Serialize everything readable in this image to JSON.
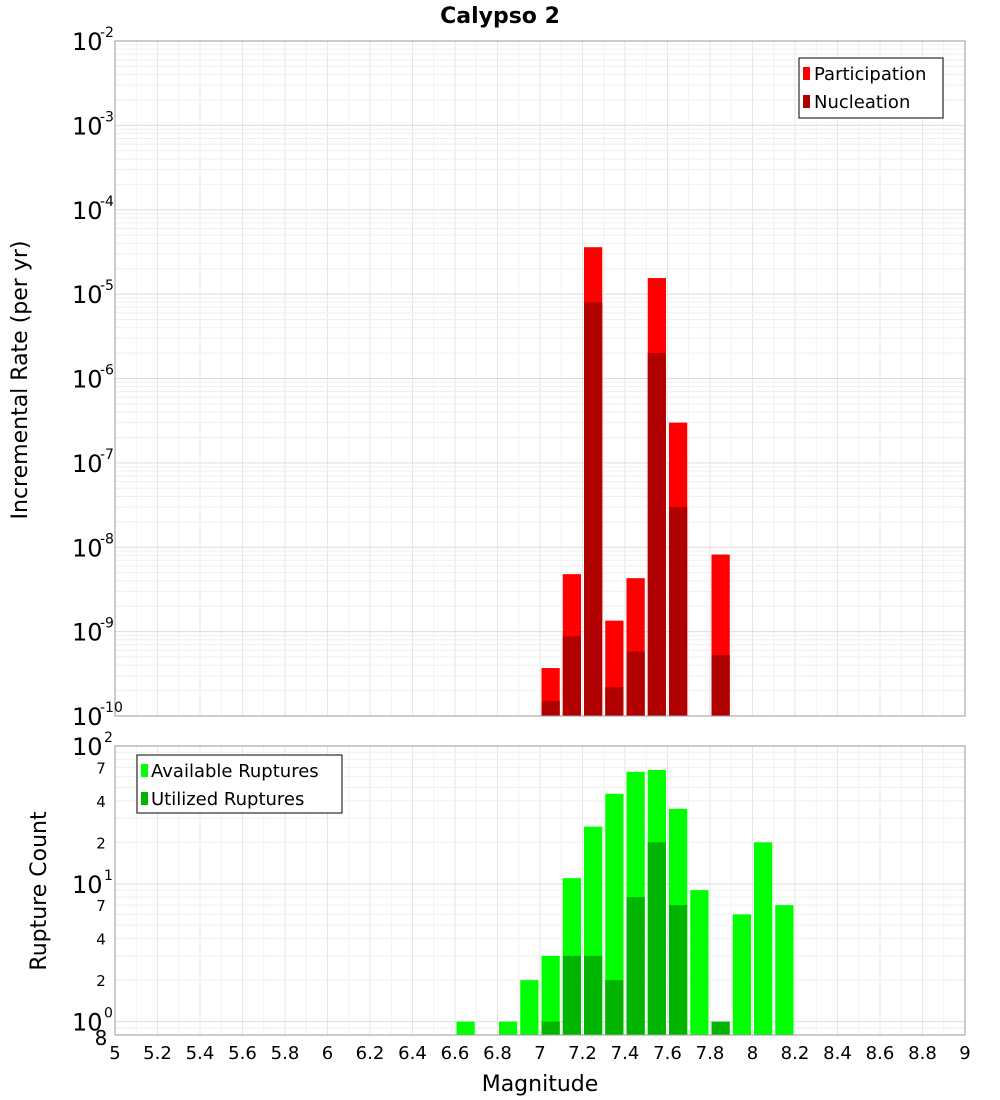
{
  "chart_data": [
    {
      "type": "bar",
      "title": "Calypso 2",
      "ylabel": "Incremental Rate (per yr)",
      "xlabel": "",
      "yscale": "log",
      "ylim": [
        1e-10,
        0.01
      ],
      "xlim": [
        5,
        9
      ],
      "grid": true,
      "legend_position": "top-right",
      "y_ticks": [
        {
          "base": "10",
          "exp": "-2"
        },
        {
          "base": "10",
          "exp": "-3"
        },
        {
          "base": "10",
          "exp": "-4"
        },
        {
          "base": "10",
          "exp": "-5"
        },
        {
          "base": "10",
          "exp": "-6"
        },
        {
          "base": "10",
          "exp": "-7"
        },
        {
          "base": "10",
          "exp": "-8"
        },
        {
          "base": "10",
          "exp": "-9"
        },
        {
          "base": "10",
          "exp": "-10"
        }
      ],
      "x_centers": [
        7.05,
        7.15,
        7.25,
        7.35,
        7.45,
        7.55,
        7.65,
        7.75,
        7.85
      ],
      "series": [
        {
          "name": "Participation",
          "color": "#ff0000",
          "values": [
            3.7e-10,
            4.8e-09,
            3.6e-05,
            1.35e-09,
            4.3e-09,
            1.55e-05,
            3e-07,
            null,
            8.2e-09
          ]
        },
        {
          "name": "Nucleation",
          "color": "#b00000",
          "values": [
            1.5e-10,
            8.8e-10,
            8e-06,
            2.2e-10,
            5.8e-10,
            2e-06,
            3e-08,
            null,
            5.3e-10
          ]
        }
      ]
    },
    {
      "type": "bar",
      "title": "",
      "ylabel": "Rupture Count",
      "xlabel": "Magnitude",
      "yscale": "log",
      "ylim": [
        0.8,
        100
      ],
      "xlim": [
        5,
        9
      ],
      "grid": true,
      "legend_position": "top-left",
      "y_major_ticks": [
        {
          "base": "10",
          "exp": "2"
        },
        {
          "base": "10",
          "exp": "1"
        },
        {
          "base": "10",
          "exp": "0"
        }
      ],
      "y_minor_tick_labels": [
        "7",
        "4",
        "2",
        "7",
        "4",
        "2",
        "8"
      ],
      "x_ticks": [
        "5",
        "5.2",
        "5.4",
        "5.6",
        "5.8",
        "6",
        "6.2",
        "6.4",
        "6.6",
        "6.8",
        "7",
        "7.2",
        "7.4",
        "7.6",
        "7.8",
        "8",
        "8.2",
        "8.4",
        "8.6",
        "8.8",
        "9"
      ],
      "x_centers": [
        6.65,
        6.75,
        6.85,
        6.95,
        7.05,
        7.15,
        7.25,
        7.35,
        7.45,
        7.55,
        7.65,
        7.75,
        7.85,
        7.95,
        8.05,
        8.15
      ],
      "series": [
        {
          "name": "Available Ruptures",
          "color": "#00ff00",
          "values": [
            1,
            null,
            1,
            2,
            3,
            11,
            26,
            45,
            65,
            67,
            35,
            9,
            null,
            6,
            20,
            7
          ]
        },
        {
          "name": "Utilized Ruptures",
          "color": "#00b400",
          "values": [
            null,
            null,
            null,
            null,
            1,
            3,
            3,
            2,
            8,
            20,
            7,
            null,
            1,
            null,
            null,
            null
          ]
        }
      ]
    }
  ]
}
